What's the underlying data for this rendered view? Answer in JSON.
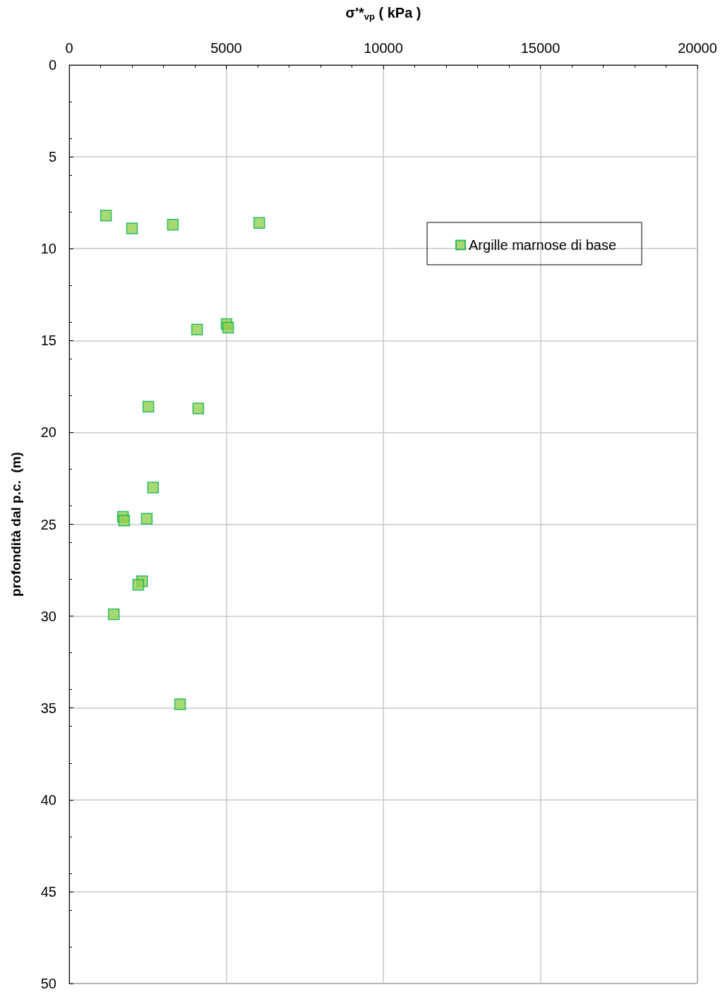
{
  "chart_data": {
    "type": "scatter",
    "xlabel": "σ'*$_{vp}$ ( kPa )",
    "ylabel": "profondità dal p.c.  (m)",
    "x": [
      1170,
      2000,
      3300,
      6050,
      5010,
      5060,
      4070,
      2520,
      4110,
      2670,
      1710,
      1750,
      2470,
      2320,
      2200,
      1420,
      3530
    ],
    "series": [
      {
        "name": "Argille marnose di base",
        "color": "#92d050",
        "values": [
          8.2,
          8.9,
          8.7,
          8.6,
          14.1,
          14.3,
          14.4,
          18.6,
          18.7,
          23.0,
          24.6,
          24.8,
          24.7,
          28.1,
          28.3,
          29.9,
          34.8
        ]
      }
    ],
    "xlim": [
      0,
      20000
    ],
    "xticks": [
      0,
      5000,
      10000,
      15000,
      20000
    ],
    "ylim": [
      50,
      0
    ],
    "yticks": [
      0,
      5,
      10,
      15,
      20,
      25,
      30,
      35,
      40,
      45,
      50
    ],
    "grid": true,
    "legend": "top right",
    "marker": "square"
  }
}
